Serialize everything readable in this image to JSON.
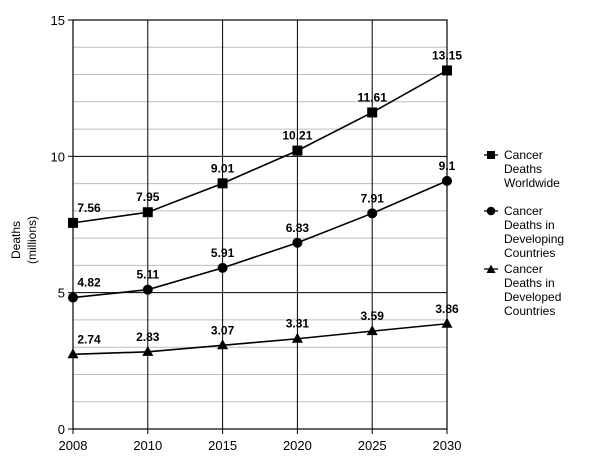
{
  "chart_data": {
    "type": "line",
    "title": "",
    "xlabel": "",
    "ylabel": "Deaths",
    "ylabel_unit": "(millions)",
    "categories": [
      "2008",
      "2010",
      "2015",
      "2020",
      "2025",
      "2030"
    ],
    "ylim": [
      0,
      15
    ],
    "y_ticks": [
      "0",
      "5",
      "10",
      "15"
    ],
    "grid": true,
    "legend_position": "right",
    "series": [
      {
        "name": "Cancer Deaths Worldwide",
        "marker": "square",
        "values": [
          7.56,
          7.95,
          9.01,
          10.21,
          11.61,
          13.15
        ],
        "labels": [
          "7.56",
          "7.95",
          "9.01",
          "10.21",
          "11.61",
          "13.15"
        ]
      },
      {
        "name": "Cancer Deaths in Developing Countries",
        "marker": "circle",
        "values": [
          4.82,
          5.11,
          5.91,
          6.83,
          7.91,
          9.1
        ],
        "labels": [
          "4.82",
          "5.11",
          "5.91",
          "6.83",
          "7.91",
          "9.1"
        ]
      },
      {
        "name": "Cancer Deaths in Developed Countries",
        "marker": "triangle",
        "values": [
          2.74,
          2.83,
          3.07,
          3.31,
          3.59,
          3.86
        ],
        "labels": [
          "2.74",
          "2.83",
          "3.07",
          "3.31",
          "3.59",
          "3.86"
        ]
      }
    ],
    "line_color": "#000000",
    "grid_color": "#bdbdbd"
  },
  "legend": {
    "items": [
      {
        "line1": "Cancer",
        "line2": "Deaths",
        "line3": "Worldwide"
      },
      {
        "line1": "Cancer",
        "line2": "Deaths in",
        "line3": "Developing",
        "line4": "Countries"
      },
      {
        "line1": "Cancer",
        "line2": "Deaths in",
        "line3": "Developed",
        "line4": "Countries"
      }
    ]
  }
}
